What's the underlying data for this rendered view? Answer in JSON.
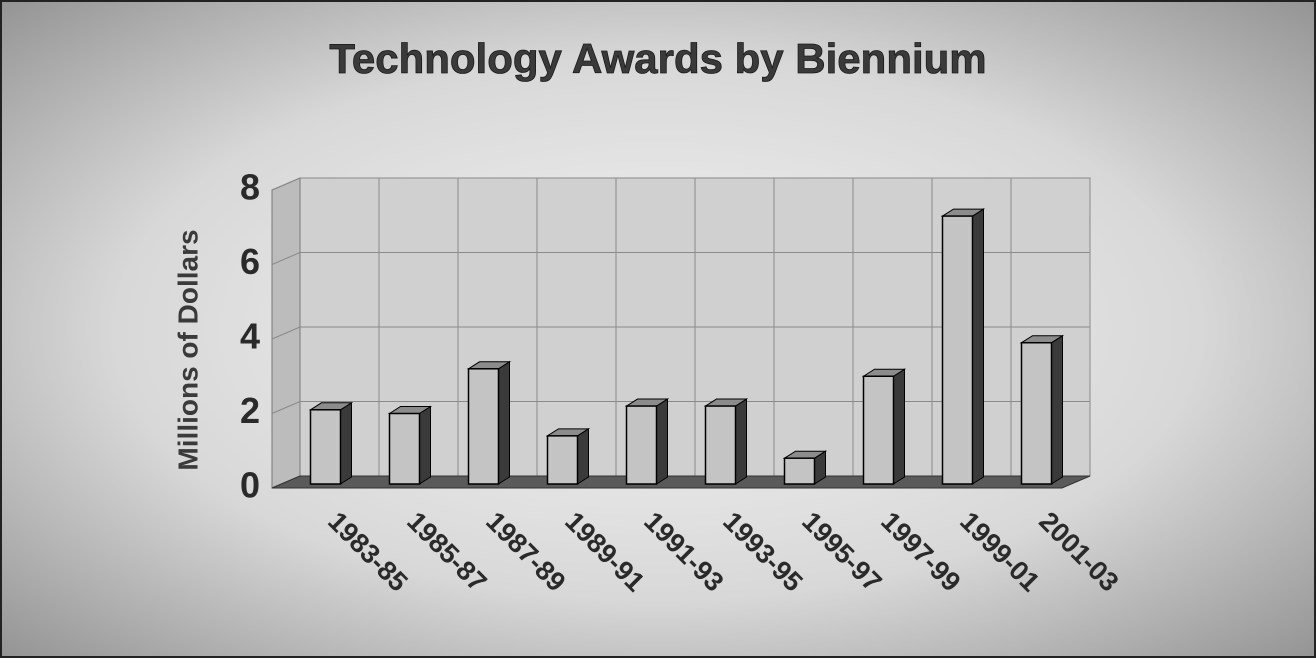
{
  "chart_data": {
    "type": "bar",
    "title": "Technology Awards by Biennium",
    "ylabel": "Millions of Dollars",
    "categories": [
      "1983-85",
      "1985-87",
      "1987-89",
      "1989-91",
      "1991-93",
      "1993-95",
      "1995-97",
      "1997-99",
      "1999-01",
      "2001-03"
    ],
    "values": [
      2.1,
      2.0,
      3.2,
      1.4,
      2.2,
      2.2,
      0.8,
      3.0,
      7.3,
      3.9
    ],
    "color": "#c4c4c4",
    "ylim": [
      0,
      8
    ],
    "yticks": [
      0,
      2,
      4,
      6,
      8
    ],
    "grid": true
  }
}
